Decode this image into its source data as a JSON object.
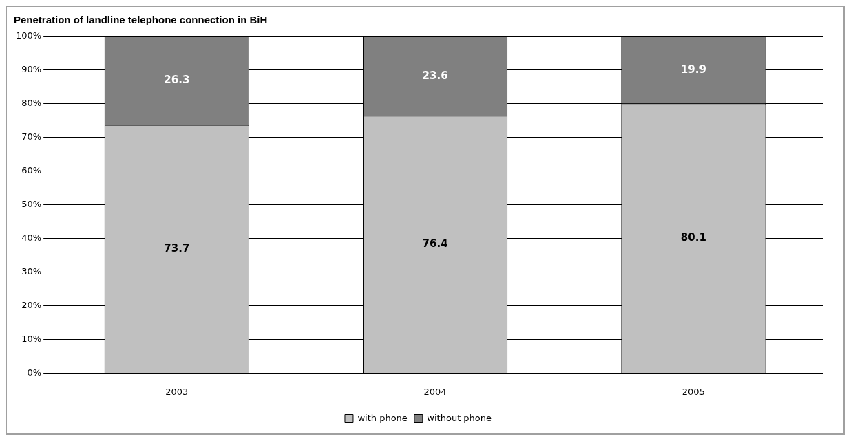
{
  "chart_data": {
    "type": "bar",
    "title": "Penetration of landline telephone connection in BiH",
    "categories": [
      "2003",
      "2004",
      "2005"
    ],
    "series": [
      {
        "name": "with phone",
        "color": "#c0c0c0",
        "values": [
          73.7,
          76.4,
          80.1
        ]
      },
      {
        "name": "without phone",
        "color": "#808080",
        "values": [
          26.3,
          23.6,
          19.9
        ]
      }
    ],
    "stacked": true,
    "ylim": [
      0,
      100
    ],
    "yticks": [
      {
        "value": 0,
        "label": "0%"
      },
      {
        "value": 10,
        "label": "10%"
      },
      {
        "value": 20,
        "label": "20%"
      },
      {
        "value": 30,
        "label": "30%"
      },
      {
        "value": 40,
        "label": "40%"
      },
      {
        "value": 50,
        "label": "50%"
      },
      {
        "value": 60,
        "label": "60%"
      },
      {
        "value": 70,
        "label": "70%"
      },
      {
        "value": 80,
        "label": "80%"
      },
      {
        "value": 90,
        "label": "90%"
      },
      {
        "value": 100,
        "label": "100%"
      }
    ],
    "grid": "y",
    "legend": "bottom",
    "data_labels": true
  }
}
